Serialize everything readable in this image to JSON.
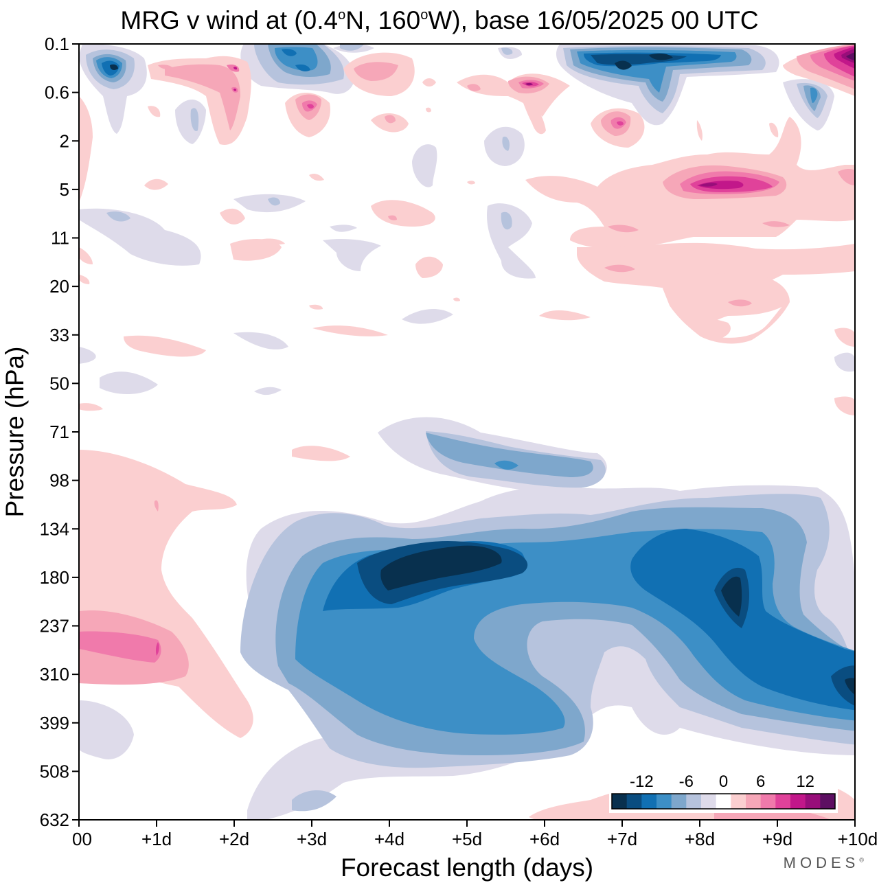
{
  "title": {
    "prefix": "MRG v wind at (0.4",
    "deg1": "o",
    "mid": "N, 160",
    "deg2": "o",
    "suffix": "W),  base 16/05/2025  00 UTC"
  },
  "brand": "MODES",
  "chart_data": {
    "type": "heatmap",
    "xlabel": "Forecast length (days)",
    "ylabel": "Pressure (hPa)",
    "x_ticks": [
      "00",
      "+1d",
      "+2d",
      "+3d",
      "+4d",
      "+5d",
      "+6d",
      "+7d",
      "+8d",
      "+9d",
      "+10d"
    ],
    "y_ticks": [
      "0.1",
      "0.6",
      "2",
      "5",
      "11",
      "20",
      "33",
      "50",
      "71",
      "98",
      "134",
      "180",
      "237",
      "310",
      "399",
      "508",
      "632"
    ],
    "xlim": [
      0,
      10
    ],
    "ylim_levels": [
      "0.1",
      "632"
    ],
    "legend": {
      "labels": [
        "-12",
        "-6",
        "0",
        "6",
        "12"
      ],
      "levels": [
        -16,
        -14,
        -12,
        -10,
        -8,
        -6,
        -4,
        -2,
        2,
        4,
        6,
        8,
        10,
        12,
        14,
        16
      ],
      "colors": [
        "#08304e",
        "#0a4d80",
        "#1170b3",
        "#3d8fc6",
        "#7ea7cc",
        "#b6c3dd",
        "#dedbea",
        "#ffffff",
        "#fbcfd0",
        "#f6a7b8",
        "#f07aab",
        "#e0429a",
        "#c2178a",
        "#980e7a",
        "#5d0f62"
      ],
      "placement": "bottom-right"
    },
    "features": [
      {
        "sign": "negative",
        "peak": -14,
        "day": 4.8,
        "level": "180",
        "note": "main easterly-phase core near 134-237 hPa, days 3-6"
      },
      {
        "sign": "negative",
        "peak": -14,
        "day": 8.5,
        "level": "180-237",
        "note": "second core days 7-9"
      },
      {
        "sign": "negative",
        "peak": -12,
        "day": 10,
        "level": "310",
        "note": "edge maximum at +10d"
      },
      {
        "sign": "negative",
        "peak": -10,
        "day": 5.5,
        "level": "399",
        "note": "lower tongue days 3-6"
      },
      {
        "sign": "positive",
        "peak": 8,
        "day": 1,
        "level": "237",
        "note": "low-level positive lobe days 0-2"
      },
      {
        "sign": "positive",
        "peak": 14,
        "day": 8.5,
        "level": "5",
        "note": "stratospheric positive maximum"
      },
      {
        "sign": "positive",
        "peak": 16,
        "day": 10,
        "level": "0.1-0.6",
        "note": "top-right strong positive"
      },
      {
        "sign": "negative",
        "peak": -16,
        "day": 7,
        "level": "0.1-0.6",
        "note": "top strong negative days 6.5-8"
      },
      {
        "sign": "negative",
        "peak": -10,
        "day": 0.5,
        "level": "0.6",
        "note": "upper negative near day 0.5"
      }
    ]
  }
}
